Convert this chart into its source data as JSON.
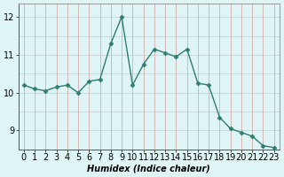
{
  "x": [
    0,
    1,
    2,
    3,
    4,
    5,
    6,
    7,
    8,
    9,
    10,
    11,
    12,
    13,
    14,
    15,
    16,
    17,
    18,
    19,
    20,
    21,
    22,
    23
  ],
  "y": [
    10.2,
    10.1,
    10.05,
    10.15,
    10.2,
    10.0,
    10.3,
    10.35,
    11.3,
    12.0,
    10.2,
    10.75,
    11.15,
    11.05,
    10.95,
    11.15,
    10.25,
    10.2,
    9.35,
    9.05,
    8.95,
    8.85,
    8.6,
    8.55
  ],
  "line_color": "#2e7d6e",
  "marker": "D",
  "marker_size": 2.5,
  "bg_color": "#dff4f4",
  "hgrid_color": "#c8d8d8",
  "vgrid_color": "#d4b8b8",
  "xlabel": "Humidex (Indice chaleur)",
  "ylim": [
    8.5,
    12.35
  ],
  "xlim": [
    -0.5,
    23.5
  ],
  "yticks": [
    9,
    10,
    11,
    12
  ],
  "xlabel_fontsize": 7,
  "tick_fontsize": 7
}
